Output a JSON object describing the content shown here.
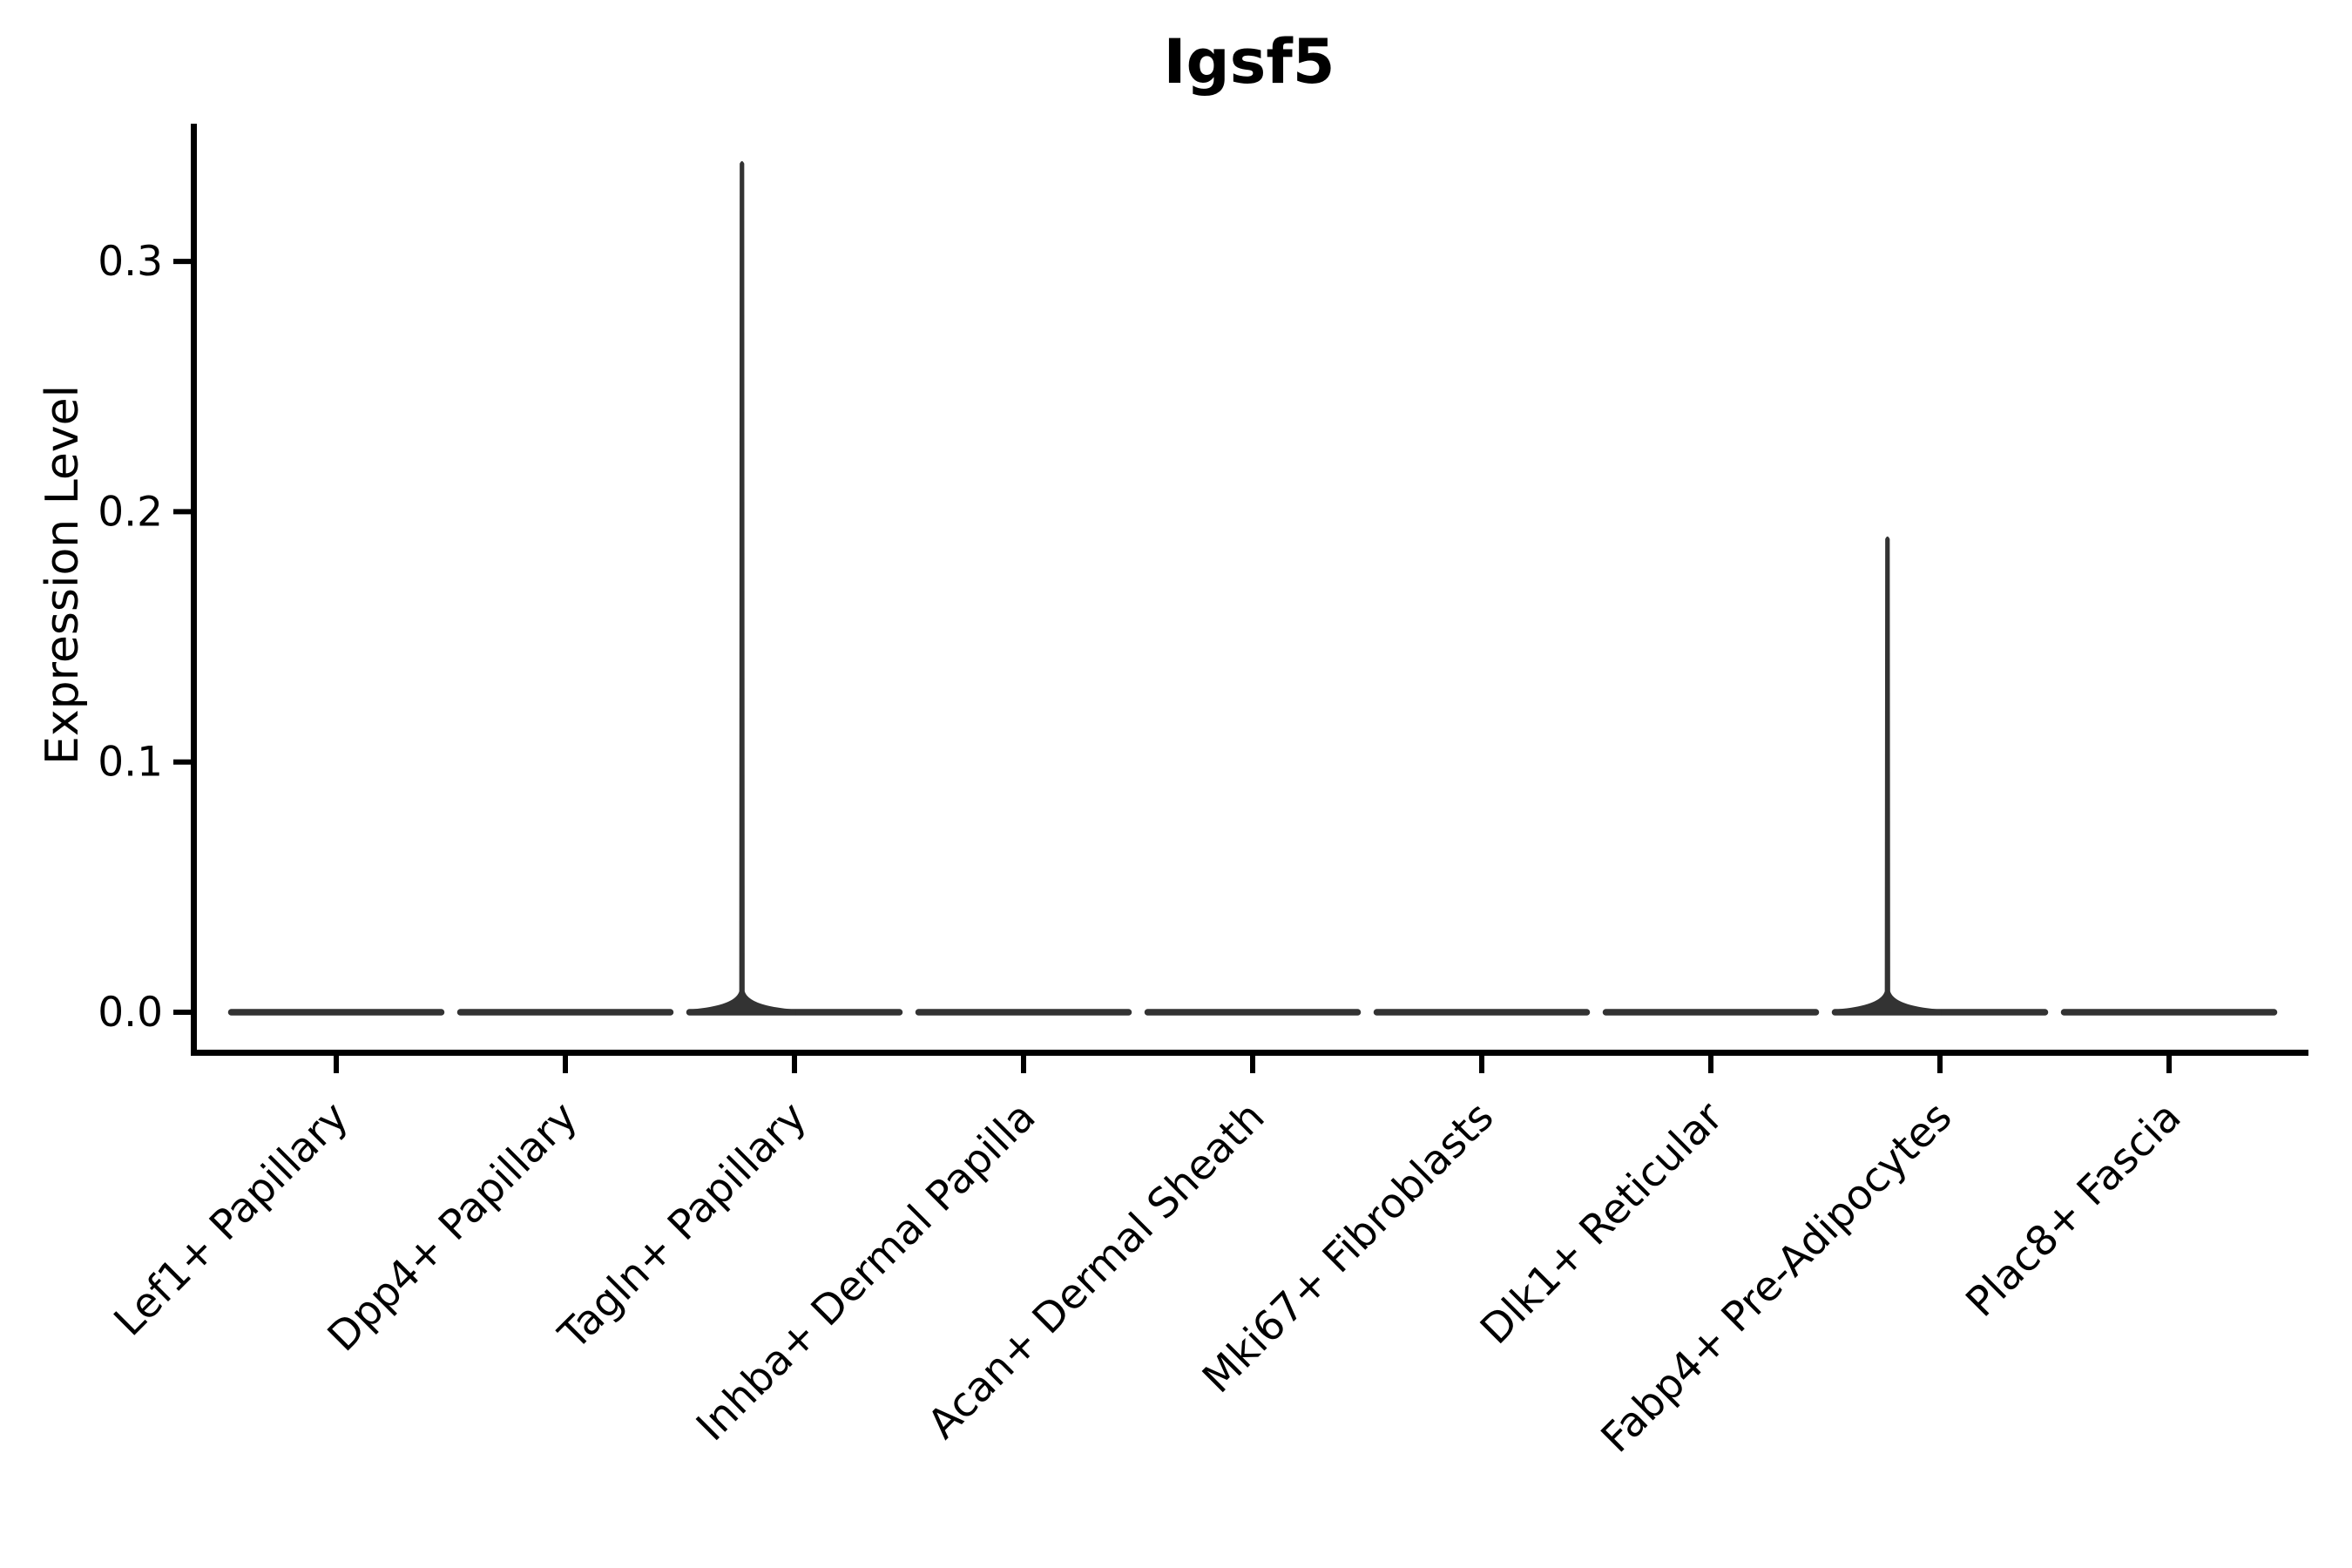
{
  "chart_data": {
    "type": "violin",
    "title": "Igsf5",
    "xlabel": "",
    "ylabel": "Expression Level",
    "categories": [
      "Lef1+ Papillary",
      "Dpp4+ Papillary",
      "Tagln+ Papillary",
      "Inhba+ Dermal Papilla",
      "Acan+ Dermal Sheath",
      "Mki67+ Fibroblasts",
      "Dlk1+ Reticular",
      "Fabp4+ Pre-Adipocytes",
      "Plac8+ Fascia"
    ],
    "violins": [
      {
        "category": "Lef1+ Papillary",
        "baseline": 0.0,
        "peak": 0.0
      },
      {
        "category": "Dpp4+ Papillary",
        "baseline": 0.0,
        "peak": 0.0
      },
      {
        "category": "Tagln+ Papillary",
        "baseline": 0.0,
        "peak": 0.34,
        "peak_x_offset_frac": -0.25
      },
      {
        "category": "Inhba+ Dermal Papilla",
        "baseline": 0.0,
        "peak": 0.0
      },
      {
        "category": "Acan+ Dermal Sheath",
        "baseline": 0.0,
        "peak": 0.0
      },
      {
        "category": "Mki67+ Fibroblasts",
        "baseline": 0.0,
        "peak": 0.0
      },
      {
        "category": "Dlk1+ Reticular",
        "baseline": 0.0,
        "peak": 0.0
      },
      {
        "category": "Fabp4+ Pre-Adipocytes",
        "baseline": 0.0,
        "peak": 0.19,
        "peak_x_offset_frac": -0.25
      },
      {
        "category": "Plac8+ Fascia",
        "baseline": 0.0,
        "peak": 0.0
      }
    ],
    "y_ticks": [
      "0.0",
      "0.1",
      "0.2",
      "0.3"
    ],
    "y_tick_values": [
      0.0,
      0.1,
      0.2,
      0.3
    ],
    "ylim": [
      -0.018,
      0.355
    ],
    "grid": false,
    "legend": null,
    "colors": {
      "violin": "#333333",
      "axis": "#000000",
      "text": "#000000"
    }
  }
}
